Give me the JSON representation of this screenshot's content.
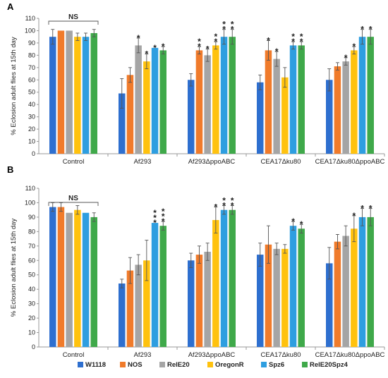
{
  "colors": {
    "W1118": "#2e6fcf",
    "NOS": "#f07b2b",
    "RelE20": "#a5a5a5",
    "OregonR": "#ffc20e",
    "Spz6": "#2e9ee0",
    "RelE20Spz4": "#3fa94a"
  },
  "legend": [
    "W1118",
    "NOS",
    "RelE20",
    "OregonR",
    "Spz6",
    "RelE20Spz4"
  ],
  "chart_data": [
    {
      "type": "bar",
      "panel": "A",
      "ylabel": "% Eclosion adult flies at 15th day",
      "ylim": [
        0,
        110
      ],
      "yticks": [
        0,
        10,
        20,
        30,
        40,
        50,
        60,
        70,
        80,
        90,
        100,
        110
      ],
      "categories": [
        "Control",
        "Af293",
        "Af293ΔppoABC",
        "CEA17Δku80",
        "CEA17Δku80ΔppoABC"
      ],
      "ns_label": "NS",
      "series": [
        {
          "name": "W1118",
          "values": [
            95,
            49,
            60,
            58,
            60
          ],
          "errors": [
            6,
            12,
            5,
            6,
            9
          ],
          "sig": [
            "",
            "",
            "",
            "",
            ""
          ]
        },
        {
          "name": "NOS",
          "values": [
            100,
            64,
            84,
            84,
            71
          ],
          "errors": [
            0,
            6,
            3,
            8,
            3
          ],
          "sig": [
            "",
            "",
            "**",
            "*",
            ""
          ]
        },
        {
          "name": "RelE20",
          "values": [
            100,
            88,
            80,
            77,
            75
          ],
          "errors": [
            0,
            6,
            5,
            6,
            3
          ],
          "sig": [
            "",
            "*",
            "*",
            "*",
            "*"
          ]
        },
        {
          "name": "OregonR",
          "values": [
            95,
            75,
            88,
            62,
            84
          ],
          "errors": [
            3,
            6,
            3,
            8,
            3
          ],
          "sig": [
            "",
            "*",
            "**",
            "",
            "*"
          ]
        },
        {
          "name": "Spz6",
          "values": [
            95,
            86,
            95,
            88,
            95
          ],
          "errors": [
            3,
            0,
            6,
            3,
            6
          ],
          "sig": [
            "",
            "*",
            "**",
            "**",
            "*"
          ]
        },
        {
          "name": "RelE20Spz4",
          "values": [
            98,
            84,
            95,
            88,
            95
          ],
          "errors": [
            3,
            3,
            6,
            3,
            6
          ],
          "sig": [
            "",
            "*",
            "**",
            "**",
            "*"
          ]
        }
      ]
    },
    {
      "type": "bar",
      "panel": "B",
      "ylabel": "% Eclosion adult flies at 15th day",
      "ylim": [
        0,
        110
      ],
      "yticks": [
        0,
        10,
        20,
        30,
        40,
        50,
        60,
        70,
        80,
        90,
        100,
        110
      ],
      "categories": [
        "Control",
        "Af293",
        "Af293ΔppoABC",
        "CEA17Δku80",
        "CEA17Δku80ΔppoABC"
      ],
      "ns_label": "NS",
      "series": [
        {
          "name": "W1118",
          "values": [
            97,
            44,
            60,
            64,
            58
          ],
          "errors": [
            3,
            3,
            5,
            8,
            11
          ],
          "sig": [
            "",
            "",
            "",
            "",
            ""
          ]
        },
        {
          "name": "NOS",
          "values": [
            97,
            53,
            64,
            71,
            73
          ],
          "errors": [
            3,
            9,
            6,
            13,
            5
          ],
          "sig": [
            "",
            "",
            "",
            "",
            ""
          ]
        },
        {
          "name": "RelE20",
          "values": [
            93,
            57,
            66,
            68,
            77
          ],
          "errors": [
            0,
            7,
            6,
            4,
            7
          ],
          "sig": [
            "",
            "",
            "",
            "",
            ""
          ]
        },
        {
          "name": "OregonR",
          "values": [
            95,
            60,
            88,
            68,
            82
          ],
          "errors": [
            3,
            14,
            9,
            3,
            9
          ],
          "sig": [
            "",
            "",
            "*",
            "",
            "*"
          ]
        },
        {
          "name": "Spz6",
          "values": [
            93,
            86,
            95,
            84,
            90
          ],
          "errors": [
            0,
            0,
            3,
            3,
            6
          ],
          "sig": [
            "",
            "***",
            "**",
            "*",
            "*"
          ]
        },
        {
          "name": "RelE20Spz4",
          "values": [
            90,
            84,
            95,
            82,
            90
          ],
          "errors": [
            3,
            3,
            3,
            3,
            6
          ],
          "sig": [
            "",
            "***",
            "**",
            "*",
            "*"
          ]
        }
      ]
    }
  ]
}
